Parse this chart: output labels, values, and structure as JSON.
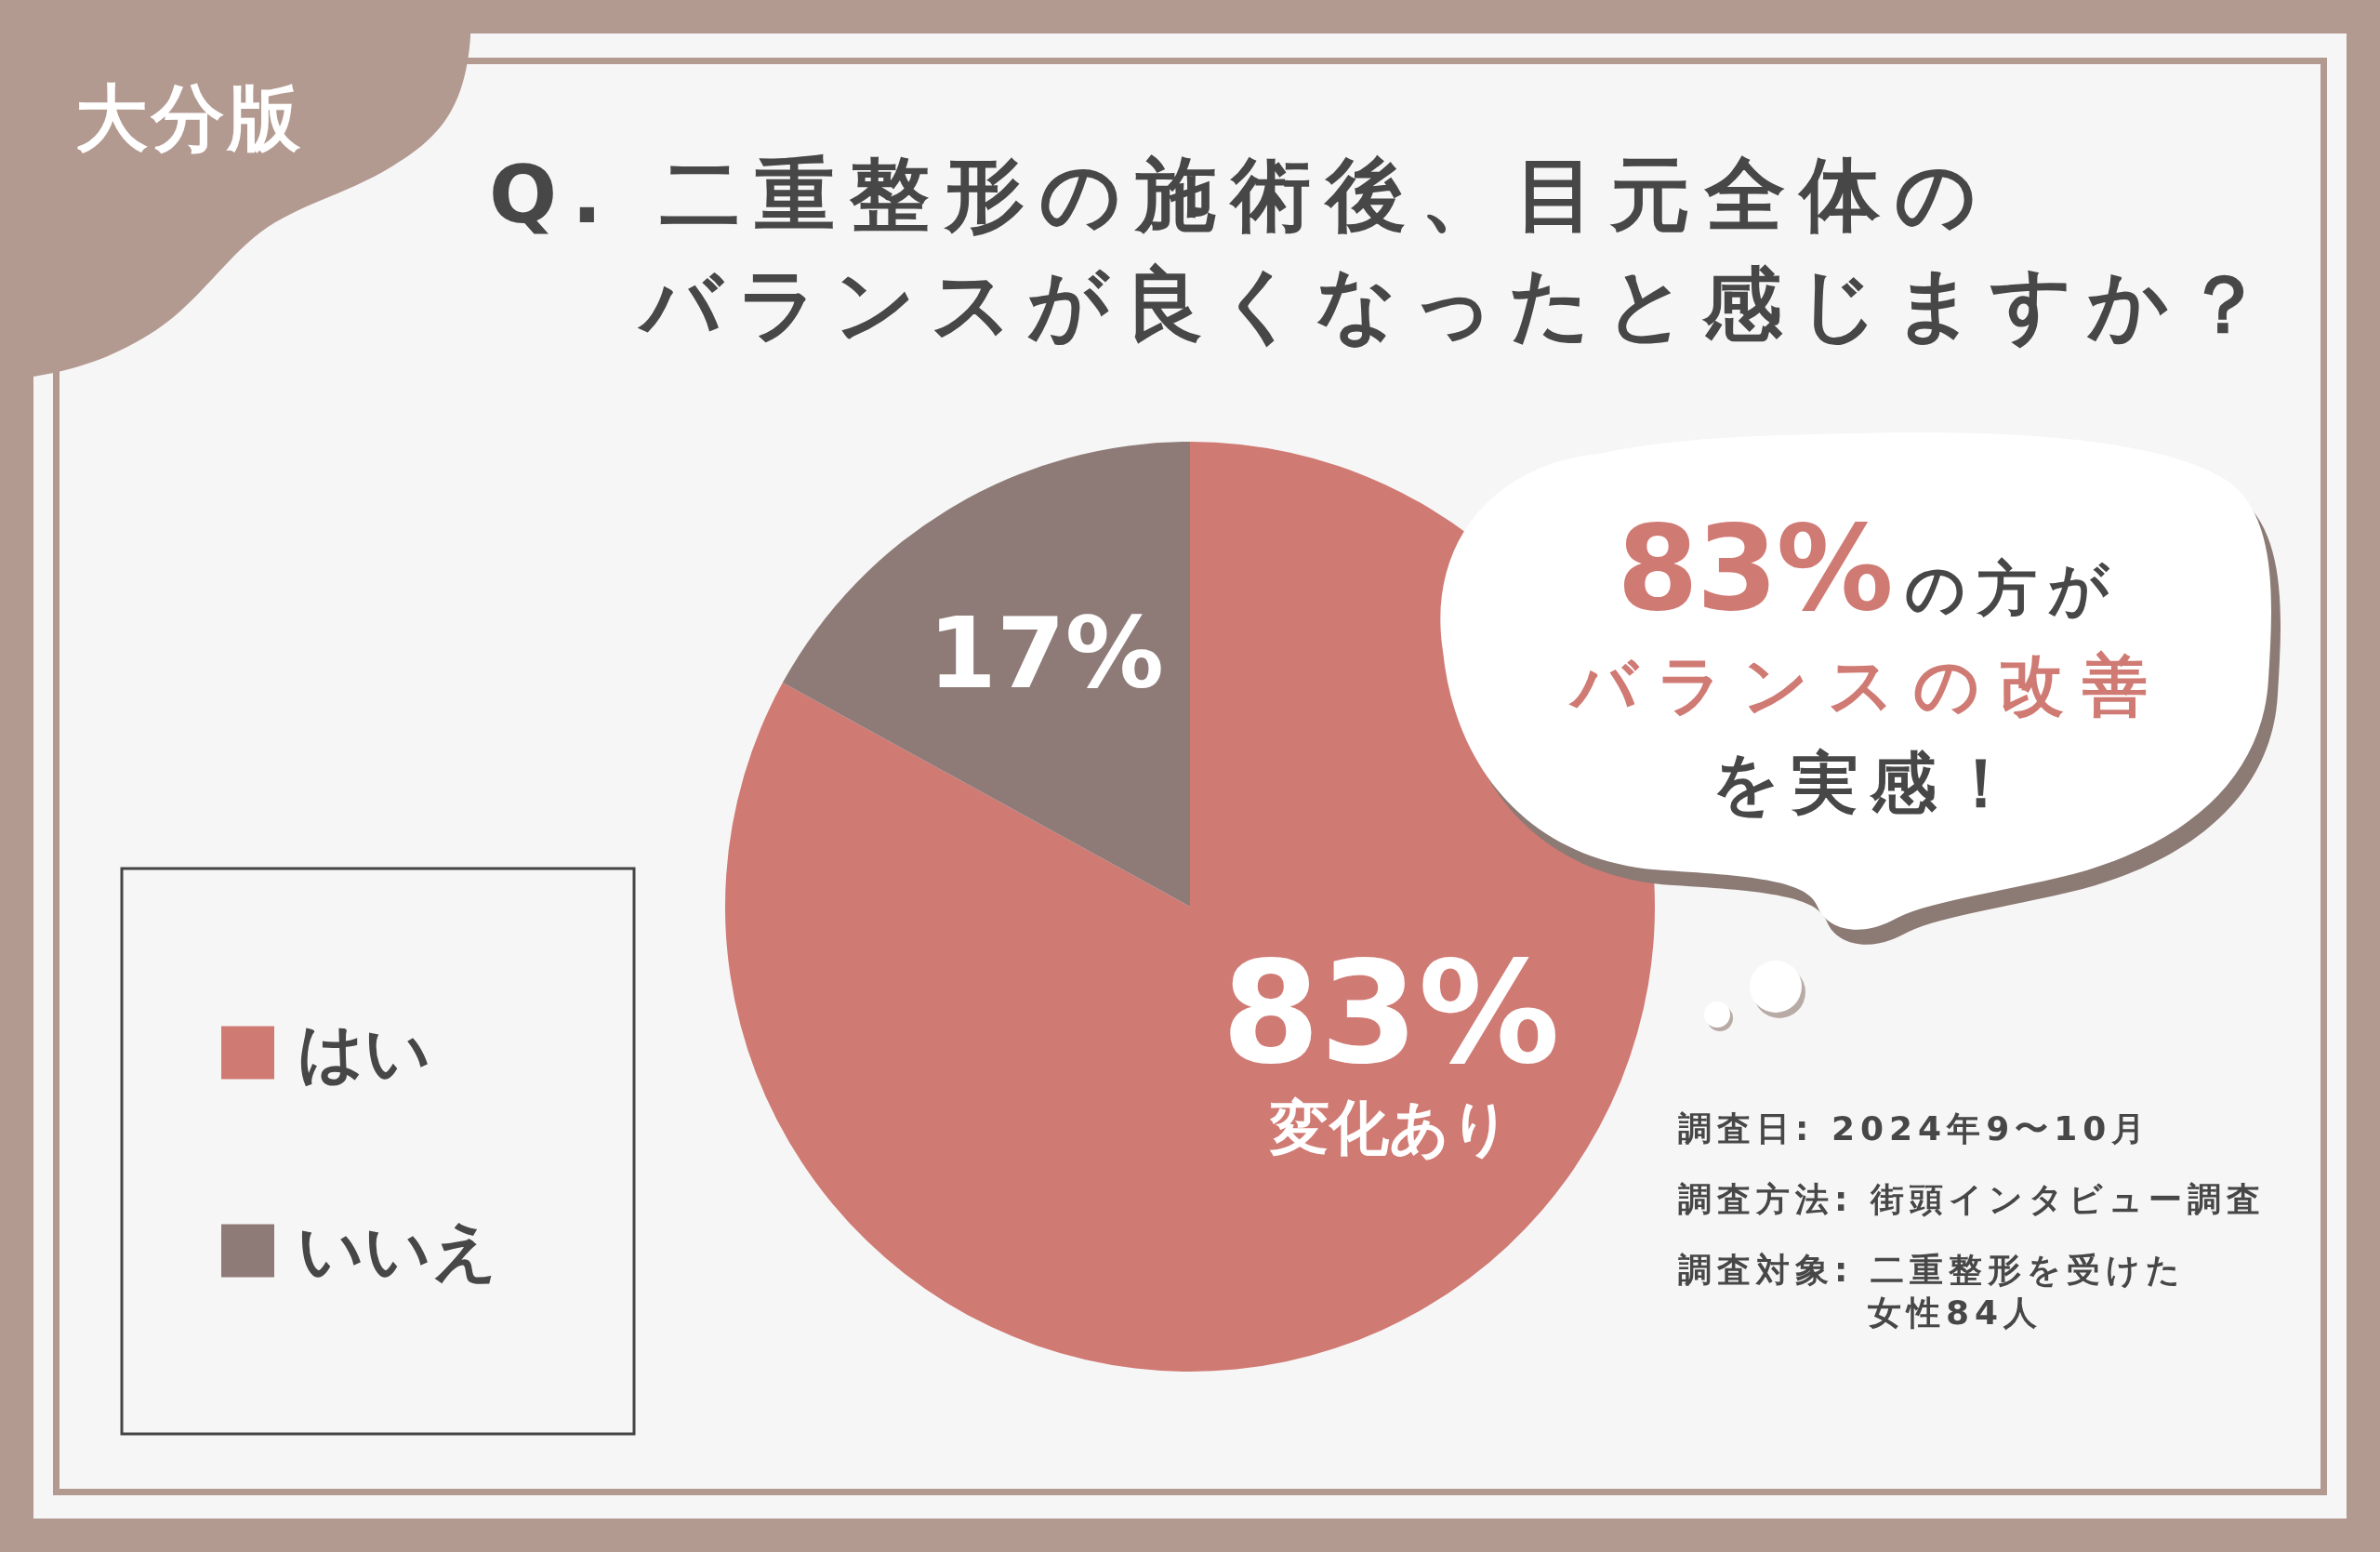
{
  "chart_data": {
    "type": "pie",
    "title": "Q. 二重整形の施術後、目元全体のバランスが良くなったと感じますか？",
    "categories": [
      "はい",
      "いいえ"
    ],
    "values": [
      83,
      17
    ],
    "colors": [
      "#d07a74",
      "#8e7b77"
    ],
    "value_labels": [
      "83%\n変化あり",
      "17%"
    ],
    "legend": "left",
    "annotations": [
      "大分版",
      "83%の方が",
      "バランスの改善",
      "を実感！",
      "調査日: 2024年9〜10月",
      "調査方法: 街頭インタビュー調査",
      "調査対象: 二重整形を受けた女性84人"
    ]
  }
}
